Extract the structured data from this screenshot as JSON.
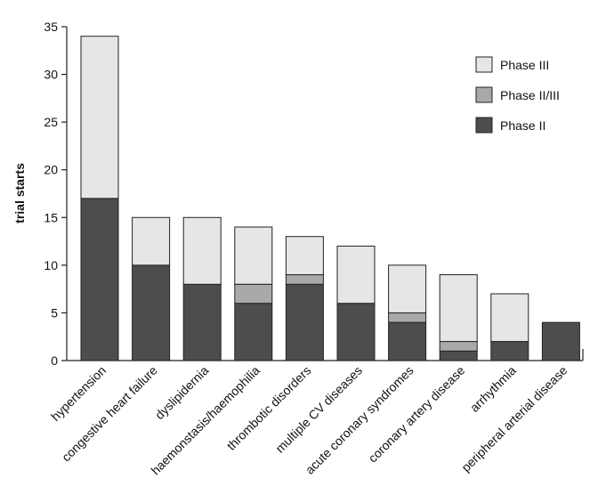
{
  "chart_data": {
    "type": "bar",
    "stacked": true,
    "title": "",
    "xlabel": "",
    "ylabel": "trial starts",
    "ylim": [
      0,
      35
    ],
    "yticks": [
      0,
      5,
      10,
      15,
      20,
      25,
      30,
      35
    ],
    "legend_position": "top-right",
    "categories": [
      "hypertension",
      "congestive heart failure",
      "dyslipidernia",
      "haemonstasis/haemophilia",
      "thrombotic disorders",
      "multiple CV diseases",
      "acute coronary syndromes",
      "coronary artery disease",
      "arrhythmia",
      "peripheral arterial disease"
    ],
    "series": [
      {
        "name": "Phase II",
        "color": "#4d4d4d",
        "values": [
          17,
          10,
          8,
          6,
          8,
          6,
          4,
          1,
          2,
          4
        ]
      },
      {
        "name": "Phase II/III",
        "color": "#a9a9a9",
        "values": [
          0,
          0,
          0,
          2,
          1,
          0,
          1,
          1,
          0,
          0
        ]
      },
      {
        "name": "Phase III",
        "color": "#e6e6e6",
        "values": [
          17,
          5,
          7,
          6,
          4,
          6,
          5,
          7,
          5,
          0
        ]
      }
    ],
    "legend_order": [
      "Phase III",
      "Phase II/III",
      "Phase II"
    ]
  }
}
